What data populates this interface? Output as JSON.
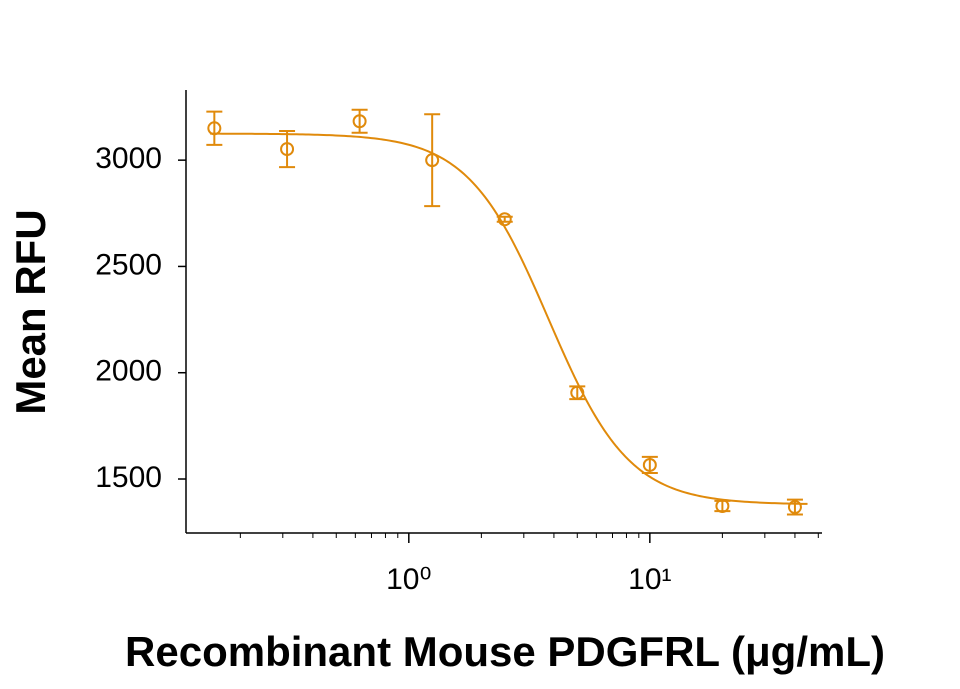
{
  "chart_data": {
    "type": "scatter",
    "x_label": "Recombinant Mouse PDGFRL (μg/mL)",
    "y_label": "Mean RFU",
    "x": [
      0.156,
      0.3125,
      0.625,
      1.25,
      2.5,
      5,
      10,
      20,
      40
    ],
    "values": [
      3150,
      3052,
      3183,
      3000,
      2722,
      1906,
      1566,
      1373,
      1368
    ],
    "errors": [
      78,
      85,
      54,
      216,
      12,
      30,
      38,
      24,
      35
    ],
    "color": "#e08a0b",
    "x_log": true,
    "xlim": [
      0.119,
      51.8
    ],
    "ylim": [
      1246,
      3330
    ],
    "xticks": [
      {
        "value": 1,
        "label": "10⁰"
      },
      {
        "value": 10,
        "label": "10¹"
      }
    ],
    "xticks_minor": [
      0.2,
      0.3,
      0.4,
      0.5,
      0.6,
      0.7,
      0.8,
      0.9,
      2,
      3,
      4,
      5,
      6,
      7,
      8,
      9,
      20,
      30,
      40,
      50
    ],
    "yticks": [
      1500,
      2000,
      2500,
      3000
    ],
    "fit": {
      "top": 3125,
      "bottom": 1380,
      "ec50": 3.8,
      "hill": 2.6
    }
  }
}
